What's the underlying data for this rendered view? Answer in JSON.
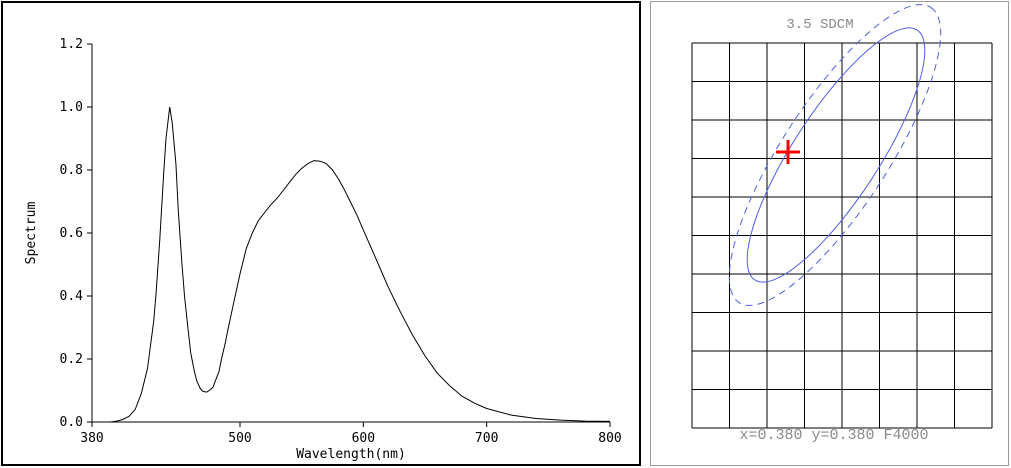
{
  "chart_data": [
    {
      "type": "line",
      "xlabel": "Wavelength(nm)",
      "ylabel": "Spectrum",
      "xlim": [
        380,
        800
      ],
      "ylim": [
        0,
        1.2
      ],
      "xticks": [
        "380",
        "500",
        "600",
        "700",
        "800"
      ],
      "yticks": [
        "0.0",
        "0.2",
        "0.4",
        "0.6",
        "0.8",
        "1.0",
        "1.2"
      ],
      "grid": false,
      "series": [
        {
          "x": [
            380,
            395,
            400,
            405,
            410,
            415,
            420,
            425,
            430,
            432,
            435,
            438,
            440,
            443,
            445,
            448,
            450,
            453,
            455,
            458,
            460,
            463,
            465,
            468,
            470,
            473,
            475,
            478,
            480,
            483,
            485,
            488,
            490,
            495,
            500,
            505,
            510,
            515,
            520,
            525,
            530,
            535,
            540,
            545,
            550,
            555,
            560,
            565,
            570,
            575,
            580,
            585,
            590,
            595,
            600,
            610,
            620,
            630,
            640,
            650,
            660,
            670,
            680,
            690,
            700,
            720,
            740,
            760,
            780,
            800
          ],
          "y": [
            0.0,
            0.0,
            0.003,
            0.008,
            0.018,
            0.04,
            0.09,
            0.17,
            0.32,
            0.41,
            0.58,
            0.78,
            0.9,
            1.0,
            0.95,
            0.82,
            0.67,
            0.5,
            0.4,
            0.29,
            0.22,
            0.16,
            0.13,
            0.105,
            0.097,
            0.095,
            0.1,
            0.11,
            0.13,
            0.16,
            0.2,
            0.25,
            0.29,
            0.38,
            0.47,
            0.55,
            0.6,
            0.64,
            0.665,
            0.69,
            0.71,
            0.735,
            0.76,
            0.785,
            0.805,
            0.82,
            0.83,
            0.828,
            0.82,
            0.8,
            0.77,
            0.735,
            0.695,
            0.655,
            0.61,
            0.52,
            0.43,
            0.35,
            0.275,
            0.21,
            0.155,
            0.115,
            0.082,
            0.06,
            0.043,
            0.022,
            0.011,
            0.006,
            0.003,
            0.002
          ]
        }
      ]
    },
    {
      "type": "scatter",
      "title": "3.5 SDCM",
      "footer": "x=0.380 y=0.380 F4000",
      "grid": true,
      "point": {
        "x": 0.38,
        "y": 0.38
      }
    }
  ],
  "colors": {
    "curve": "#000000",
    "ellipse": "#5060e6",
    "marker": "#ff0000",
    "grid": "#000000",
    "label": "#8a8a8a"
  }
}
